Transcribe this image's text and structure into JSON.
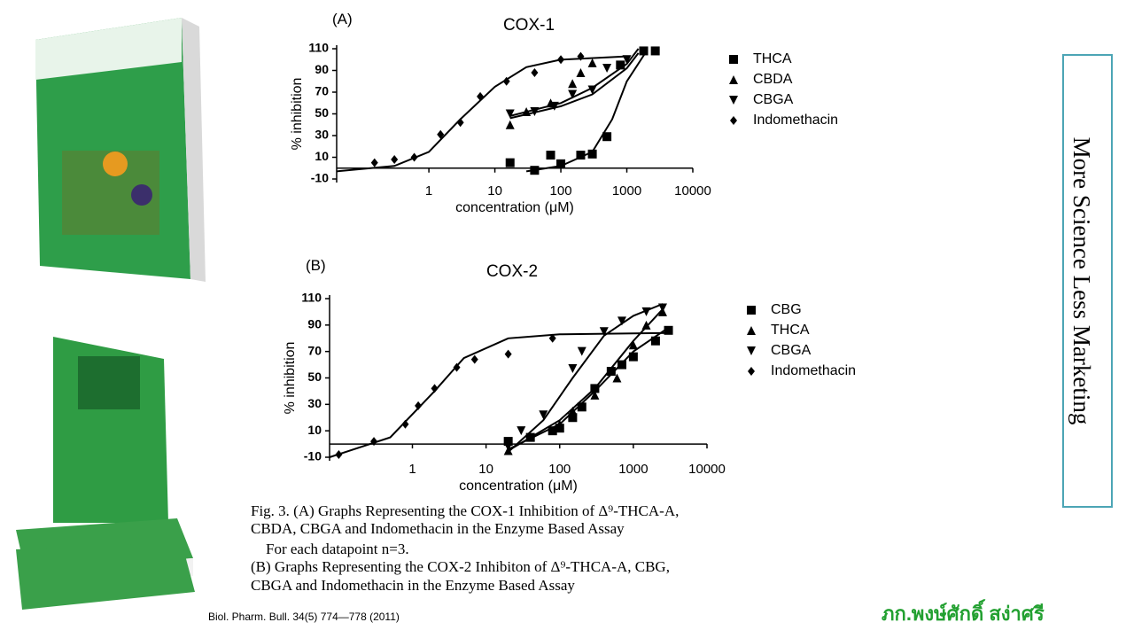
{
  "chart_data": [
    {
      "type": "scatter",
      "panel": "(A)",
      "title": "COX-1",
      "xlabel": "concentration (μM)",
      "ylabel": "% inhibition",
      "xscale": "log",
      "xlim": [
        0.04,
        10000
      ],
      "ylim": [
        -10,
        110
      ],
      "xticks": [
        1,
        10,
        100,
        1000,
        10000
      ],
      "yticks": [
        -10,
        10,
        30,
        50,
        70,
        90,
        110
      ],
      "series": [
        {
          "name": "THCA",
          "marker": "square",
          "color": "#000000",
          "x": [
            17,
            40,
            70,
            100,
            200,
            300,
            500,
            800,
            1800,
            2700
          ],
          "values": [
            5,
            -2,
            12,
            4,
            12,
            13,
            29,
            95,
            108,
            108
          ]
        },
        {
          "name": "CBDA",
          "marker": "triangle",
          "color": "#000000",
          "x": [
            17,
            30,
            70,
            150,
            200,
            300
          ],
          "values": [
            40,
            52,
            60,
            78,
            88,
            97
          ]
        },
        {
          "name": "CBGA",
          "marker": "triangle-down",
          "color": "#000000",
          "x": [
            17,
            40,
            80,
            150,
            300,
            500,
            1000
          ],
          "values": [
            50,
            52,
            57,
            68,
            72,
            92,
            100
          ]
        },
        {
          "name": "Indomethacin",
          "marker": "diamond",
          "color": "#000000",
          "x": [
            0.15,
            0.3,
            0.6,
            1.5,
            3,
            6,
            15,
            40,
            100,
            200
          ],
          "values": [
            5,
            8,
            10,
            31,
            42,
            66,
            80,
            88,
            100,
            103
          ]
        }
      ],
      "curves": [
        {
          "x": [
            30,
            100,
            300,
            600,
            1000,
            2000
          ],
          "values": [
            -3,
            2,
            15,
            45,
            80,
            108
          ]
        },
        {
          "x": [
            17,
            100,
            300,
            1000,
            1500
          ],
          "values": [
            48,
            60,
            74,
            96,
            110
          ]
        },
        {
          "x": [
            17,
            100,
            300,
            1000,
            1500
          ],
          "values": [
            46,
            57,
            68,
            92,
            106
          ]
        },
        {
          "x": [
            0.04,
            0.3,
            1,
            3,
            10,
            30,
            100,
            1000
          ],
          "values": [
            -3,
            2,
            15,
            45,
            75,
            93,
            100,
            103
          ]
        }
      ]
    },
    {
      "type": "scatter",
      "panel": "(B)",
      "title": "COX-2",
      "xlabel": "concentration (μM)",
      "ylabel": "% inhibition",
      "xscale": "log",
      "xlim": [
        0.075,
        10000
      ],
      "ylim": [
        -10,
        110
      ],
      "xticks": [
        1,
        10,
        100,
        1000,
        10000
      ],
      "yticks": [
        -10,
        10,
        30,
        50,
        70,
        90,
        110
      ],
      "series": [
        {
          "name": "CBG",
          "marker": "square",
          "color": "#000000",
          "x": [
            20,
            40,
            80,
            100,
            150,
            200,
            300,
            500,
            700,
            1000,
            2000,
            3000
          ],
          "values": [
            2,
            5,
            10,
            12,
            20,
            28,
            42,
            55,
            60,
            66,
            78,
            86
          ]
        },
        {
          "name": "THCA",
          "marker": "triangle",
          "color": "#000000",
          "x": [
            20,
            100,
            150,
            300,
            600,
            1000,
            1500,
            2500
          ],
          "values": [
            -5,
            15,
            25,
            37,
            50,
            75,
            90,
            100
          ]
        },
        {
          "name": "CBGA",
          "marker": "triangle-down",
          "color": "#000000",
          "x": [
            20,
            30,
            60,
            150,
            200,
            400,
            700,
            1500,
            2500
          ],
          "values": [
            -2,
            10,
            22,
            57,
            70,
            85,
            93,
            100,
            103
          ]
        },
        {
          "name": "Indomethacin",
          "marker": "diamond",
          "color": "#000000",
          "x": [
            0.1,
            0.3,
            0.8,
            1.2,
            2,
            4,
            7,
            20,
            80
          ],
          "values": [
            -8,
            2,
            15,
            29,
            42,
            58,
            64,
            68,
            80
          ]
        }
      ],
      "curves": [
        {
          "x": [
            20,
            100,
            300,
            1000,
            3000
          ],
          "values": [
            -4,
            15,
            40,
            70,
            88
          ]
        },
        {
          "x": [
            20,
            100,
            300,
            1000,
            2500
          ],
          "values": [
            -5,
            18,
            42,
            78,
            102
          ]
        },
        {
          "x": [
            20,
            60,
            150,
            400,
            1000,
            2500
          ],
          "values": [
            -6,
            18,
            50,
            82,
            97,
            106
          ]
        },
        {
          "x": [
            0.075,
            0.5,
            2,
            5,
            20,
            100,
            3000
          ],
          "values": [
            -10,
            5,
            40,
            65,
            80,
            83,
            84
          ]
        }
      ]
    }
  ],
  "caption": [
    "Fig. 3.   (A) Graphs Representing the COX-1 Inhibition of Δ⁹-THCA-A,",
    "CBDA, CBGA and Indomethacin in the Enzyme Based Assay",
    "For each datapoint n=3.",
    "(B) Graphs Representing the COX-2 Inhibiton of Δ⁹-THCA-A, CBG,",
    "CBGA and Indomethacin in the Enzyme Based Assay"
  ],
  "citation": "Biol. Pharm. Bull. 34(5) 774—778  (2011)",
  "side_box": "More Science Less Marketing",
  "author": "ภก.พงษ์ศักดิ์ สง่าศรี"
}
